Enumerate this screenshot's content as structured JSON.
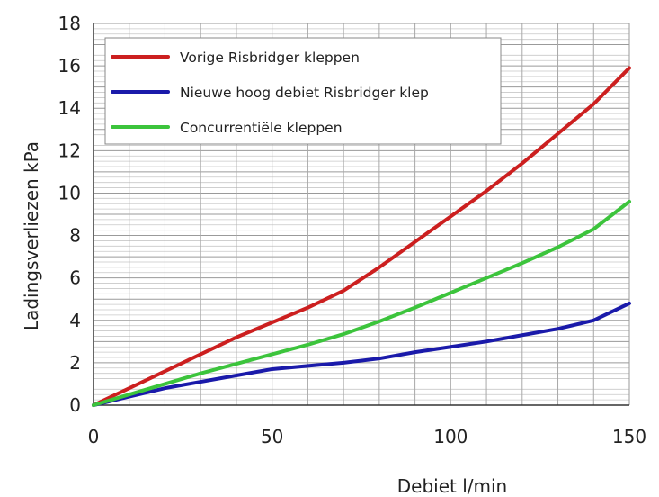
{
  "chart_data": {
    "type": "line",
    "xlabel": "Debiet l/min",
    "ylabel": "Ladingsverliezen kPa",
    "xlim": [
      0,
      150
    ],
    "ylim": [
      0,
      18
    ],
    "x_ticks": [
      0,
      50,
      100,
      150
    ],
    "y_ticks": [
      0,
      2,
      4,
      6,
      8,
      10,
      12,
      14,
      16,
      18
    ],
    "grid": true,
    "legend_position": "top-left",
    "series": [
      {
        "name": "Vorige Risbridger kleppen",
        "color": "#cc1f1f",
        "x": [
          0,
          10,
          20,
          30,
          40,
          50,
          60,
          70,
          80,
          90,
          100,
          110,
          120,
          130,
          140,
          150
        ],
        "y": [
          0,
          0.8,
          1.6,
          2.4,
          3.2,
          3.9,
          4.6,
          5.4,
          6.5,
          7.7,
          8.9,
          10.1,
          11.4,
          12.8,
          14.2,
          15.9
        ]
      },
      {
        "name": "Nieuwe hoog debiet Risbridger klep",
        "color": "#1a1aaa",
        "x": [
          0,
          10,
          20,
          30,
          40,
          50,
          60,
          70,
          80,
          90,
          100,
          110,
          120,
          130,
          140,
          150
        ],
        "y": [
          0,
          0.4,
          0.8,
          1.1,
          1.4,
          1.7,
          1.85,
          2.0,
          2.2,
          2.5,
          2.75,
          3.0,
          3.3,
          3.6,
          4.0,
          4.8
        ]
      },
      {
        "name": "Concurrentiële kleppen",
        "color": "#3cc43c",
        "x": [
          0,
          10,
          20,
          30,
          40,
          50,
          60,
          70,
          80,
          90,
          100,
          110,
          120,
          130,
          140,
          150
        ],
        "y": [
          0,
          0.5,
          1.0,
          1.5,
          1.95,
          2.4,
          2.85,
          3.35,
          3.95,
          4.6,
          5.3,
          6.0,
          6.7,
          7.45,
          8.3,
          9.6
        ]
      }
    ]
  }
}
